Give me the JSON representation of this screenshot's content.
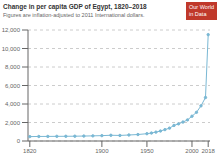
{
  "chart_data": {
    "type": "line",
    "title": "Change in per capita GDP of Egypt, 1820–2018",
    "subtitle": "Figures are inflation-adjusted to 2011 International dollars.",
    "annotations": [
      "Our World\nin Data"
    ],
    "x": [
      1820,
      1830,
      1840,
      1850,
      1860,
      1870,
      1880,
      1890,
      1900,
      1910,
      1920,
      1930,
      1940,
      1950,
      1955,
      1960,
      1965,
      1970,
      1975,
      1980,
      1985,
      1990,
      1995,
      2000,
      2005,
      2010,
      2015,
      2018
    ],
    "values": [
      475,
      490,
      495,
      505,
      510,
      520,
      535,
      555,
      580,
      620,
      600,
      650,
      700,
      790,
      860,
      960,
      1080,
      1230,
      1390,
      1680,
      1850,
      2050,
      2280,
      2680,
      3100,
      3800,
      4700,
      11500
    ],
    "color": "#7ab8d4",
    "marker": "circle",
    "xlim": [
      1818,
      2020
    ],
    "xticks": [
      1820,
      1900,
      1950,
      2000,
      2018
    ],
    "ylim": [
      0,
      12000
    ],
    "yticks": [
      0,
      {
        "value": 2000,
        "label": "2,000"
      },
      {
        "value": 4000,
        "label": "4,000"
      },
      {
        "value": 6000,
        "label": "6,000"
      },
      {
        "value": 8000,
        "label": "8,000"
      },
      {
        "value": 10000,
        "label": "10,000"
      },
      {
        "value": 12000,
        "label": "12,000"
      }
    ],
    "grid": true
  }
}
